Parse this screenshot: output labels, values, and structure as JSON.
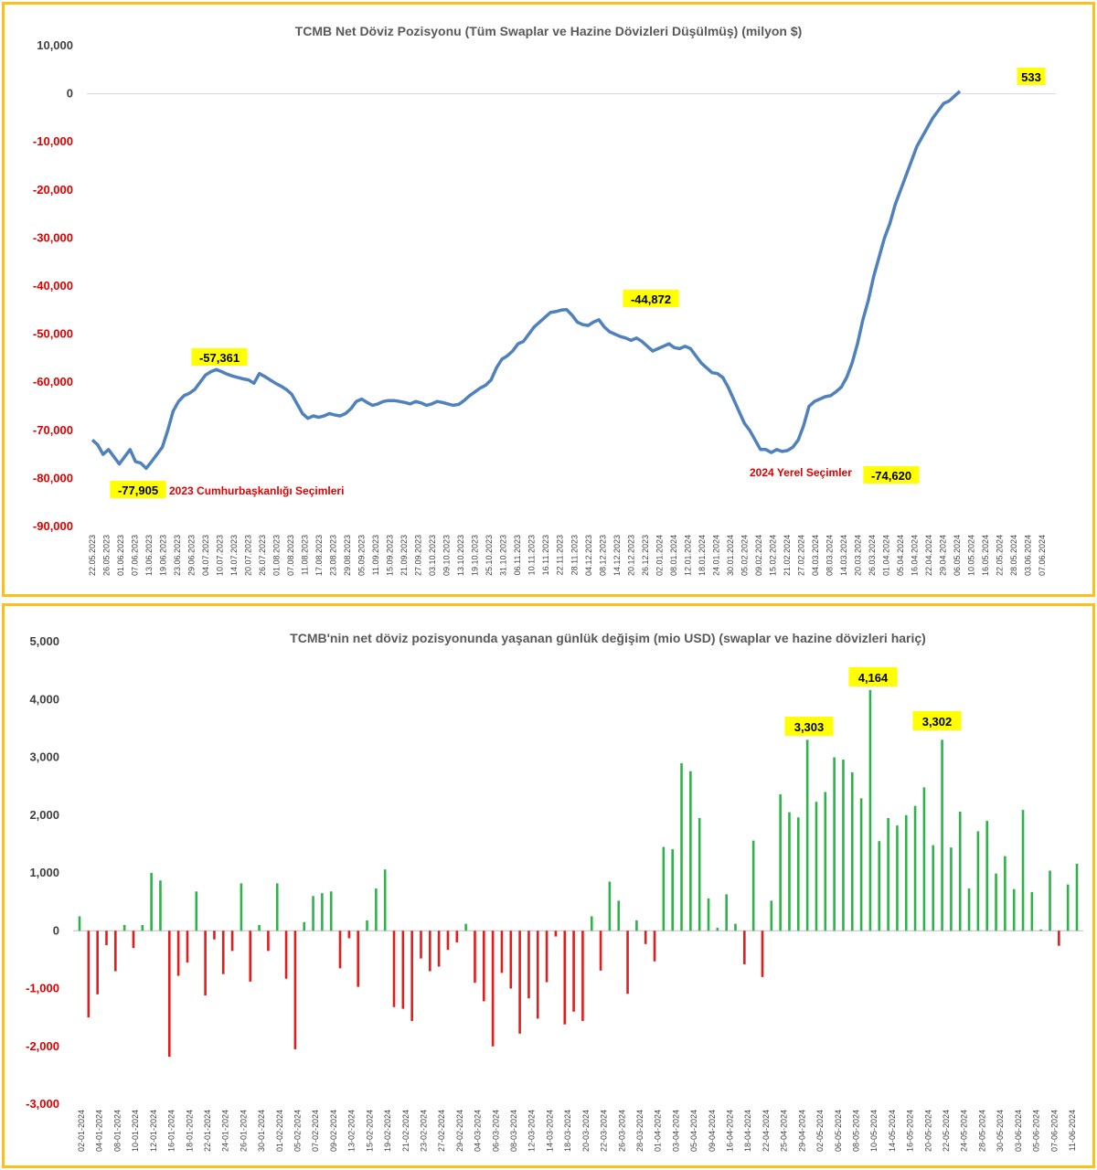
{
  "colors": {
    "border": "#f6c21b",
    "line": "#4f81bd",
    "pos": "#2db34a",
    "neg": "#e51c1c",
    "highlight": "#ffff00",
    "neg_label": "#e00000",
    "pos_label": "#404040"
  },
  "chart_data": [
    {
      "type": "line",
      "title": "TCMB Net Döviz Pozisyonu (Tüm Swaplar ve Hazine Dövizleri Düşülmüş) (milyon $)",
      "ylim": [
        -90000,
        10000
      ],
      "yticks": [
        "10,000",
        "0",
        "-10,000",
        "-20,000",
        "-30,000",
        "-40,000",
        "-50,000",
        "-60,000",
        "-70,000",
        "-80,000",
        "-90,000"
      ],
      "xticks": [
        "22.05.2023",
        "26.05.2023",
        "01.06.2023",
        "07.06.2023",
        "13.06.2023",
        "19.06.2023",
        "23.06.2023",
        "29.06.2023",
        "04.07.2023",
        "10.07.2023",
        "14.07.2023",
        "20.07.2023",
        "26.07.2023",
        "01.08.2023",
        "07.08.2023",
        "11.08.2023",
        "17.08.2023",
        "23.08.2023",
        "29.08.2023",
        "05.09.2023",
        "11.09.2023",
        "15.09.2023",
        "21.09.2023",
        "27.09.2023",
        "03.10.2023",
        "09.10.2023",
        "13.10.2023",
        "19.10.2023",
        "25.10.2023",
        "31.10.2023",
        "06.11.2023",
        "10.11.2023",
        "16.11.2023",
        "22.11.2023",
        "28.11.2023",
        "04.12.2023",
        "08.12.2023",
        "14.12.2023",
        "20.12.2023",
        "26.12.2023",
        "02.01.2024",
        "08.01.2024",
        "12.01.2024",
        "18.01.2024",
        "24.01.2024",
        "30.01.2024",
        "05.02.2024",
        "09.02.2024",
        "15.02.2024",
        "21.02.2024",
        "27.02.2024",
        "04.03.2024",
        "08.03.2024",
        "14.03.2024",
        "20.03.2024",
        "26.03.2024",
        "01.04.2024",
        "05.04.2024",
        "16.04.2024",
        "22.04.2024",
        "29.04.2024",
        "06.05.2024",
        "10.05.2024",
        "16.05.2024",
        "22.05.2024",
        "28.05.2024",
        "03.06.2024",
        "07.06.2024"
      ],
      "series": [
        {
          "values": [
            -72000,
            -73000,
            -75000,
            -74000,
            -75500,
            -77000,
            -75500,
            -74000,
            -76500,
            -76800,
            -77905,
            -76500,
            -75000,
            -73500,
            -70000,
            -66000,
            -64000,
            -62800,
            -62300,
            -61500,
            -60000,
            -58500,
            -57800,
            -57361,
            -57800,
            -58300,
            -58700,
            -59000,
            -59300,
            -59500,
            -60200,
            -58200,
            -58800,
            -59500,
            -60200,
            -60800,
            -61500,
            -62500,
            -64500,
            -66500,
            -67500,
            -67000,
            -67300,
            -67000,
            -66500,
            -66800,
            -67000,
            -66500,
            -65500,
            -64000,
            -63500,
            -64200,
            -64800,
            -64500,
            -64000,
            -63800,
            -63800,
            -64000,
            -64200,
            -64500,
            -64000,
            -64300,
            -64800,
            -64500,
            -64000,
            -64200,
            -64500,
            -64800,
            -64600,
            -63800,
            -62800,
            -62000,
            -61200,
            -60600,
            -59500,
            -57000,
            -55200,
            -54500,
            -53500,
            -52000,
            -51500,
            -50000,
            -48500,
            -47500,
            -46500,
            -45500,
            -45300,
            -45000,
            -44872,
            -46000,
            -47500,
            -48000,
            -48200,
            -47500,
            -47000,
            -48500,
            -49500,
            -50000,
            -50500,
            -50800,
            -51300,
            -50800,
            -51500,
            -52500,
            -53500,
            -53000,
            -52500,
            -52000,
            -52800,
            -53000,
            -52500,
            -53000,
            -54500,
            -56000,
            -57000,
            -58000,
            -58200,
            -59000,
            -61000,
            -63500,
            -66000,
            -68500,
            -70000,
            -72000,
            -74000,
            -74000,
            -74620,
            -74000,
            -74400,
            -74200,
            -73500,
            -72000,
            -69000,
            -65000,
            -64000,
            -63500,
            -63000,
            -62800,
            -62000,
            -61000,
            -59000,
            -56000,
            -52000,
            -47000,
            -43000,
            -38000,
            -34000,
            -30000,
            -27000,
            -23000,
            -20000,
            -17000,
            -14000,
            -11000,
            -9000,
            -7000,
            -5000,
            -3500,
            -2000,
            -1500,
            -500,
            533
          ]
        }
      ],
      "highlights": [
        "-77,905",
        "-57,361",
        "-44,872",
        "-74,620",
        "533"
      ],
      "annotations": [
        "2023 Cumhurbaşkanlığı Seçimleri",
        "2024 Yerel Seçimler"
      ]
    },
    {
      "type": "bar",
      "title": "TCMB'nin net döviz pozisyonunda yaşanan günlük değişim (mio USD) (swaplar ve hazine dövizleri hariç)",
      "ylim": [
        -3000,
        5000
      ],
      "yticks": [
        "5,000",
        "4,000",
        "3,000",
        "2,000",
        "1,000",
        "0",
        "-1,000",
        "-2,000",
        "-3,000"
      ],
      "xticks": [
        "02-01-2024",
        "04-01-2024",
        "08-01-2024",
        "10-01-2024",
        "12-01-2024",
        "16-01-2024",
        "18-01-2024",
        "22-01-2024",
        "24-01-2024",
        "26-01-2024",
        "30-01-2024",
        "01-02-2024",
        "05-02-2024",
        "07-02-2024",
        "09-02-2024",
        "13-02-2024",
        "15-02-2024",
        "19-02-2024",
        "21-02-2024",
        "23-02-2024",
        "27-02-2024",
        "29-02-2024",
        "04-03-2024",
        "06-03-2024",
        "08-03-2024",
        "12-03-2024",
        "14-03-2024",
        "18-03-2024",
        "20-03-2024",
        "22-03-2024",
        "26-03-2024",
        "28-03-2024",
        "01-04-2024",
        "03-04-2024",
        "05-04-2024",
        "09-04-2024",
        "16-04-2024",
        "18-04-2024",
        "22-04-2024",
        "25-04-2024",
        "29-04-2024",
        "02-05-2024",
        "06-05-2024",
        "08-05-2024",
        "10-05-2024",
        "14-05-2024",
        "16-05-2024",
        "20-05-2024",
        "22-05-2024",
        "24-05-2024",
        "28-05-2024",
        "30-05-2024",
        "03-06-2024",
        "05-06-2024",
        "07-06-2024",
        "11-06-2024"
      ],
      "values": [
        250,
        -1500,
        -1100,
        -250,
        -700,
        100,
        -300,
        100,
        1000,
        870,
        -2180,
        -780,
        -550,
        680,
        -1120,
        -150,
        -750,
        -350,
        820,
        -880,
        100,
        -350,
        820,
        -830,
        -2050,
        150,
        600,
        650,
        680,
        -650,
        -130,
        -970,
        180,
        730,
        1060,
        -1320,
        -1350,
        -1560,
        -480,
        -700,
        -620,
        -330,
        -200,
        120,
        -900,
        -1220,
        -2000,
        -730,
        -1000,
        -1780,
        -1170,
        -1520,
        -890,
        -100,
        -1620,
        -1400,
        -1560,
        250,
        -690,
        850,
        520,
        -1090,
        180,
        -230,
        -530,
        1450,
        1410,
        2900,
        2760,
        1950,
        560,
        50,
        630,
        120,
        -580,
        1560,
        -800,
        520,
        2360,
        2050,
        1960,
        3303,
        2230,
        2400,
        3000,
        2960,
        2740,
        2290,
        4164,
        1550,
        1950,
        1820,
        2000,
        2160,
        2480,
        1480,
        3302,
        1440,
        2060,
        730,
        1720,
        1900,
        990,
        1290,
        720,
        2090,
        670,
        20,
        1040,
        -260,
        800,
        1160
      ],
      "highlights": [
        "3,303",
        "4,164",
        "3,302"
      ]
    }
  ]
}
